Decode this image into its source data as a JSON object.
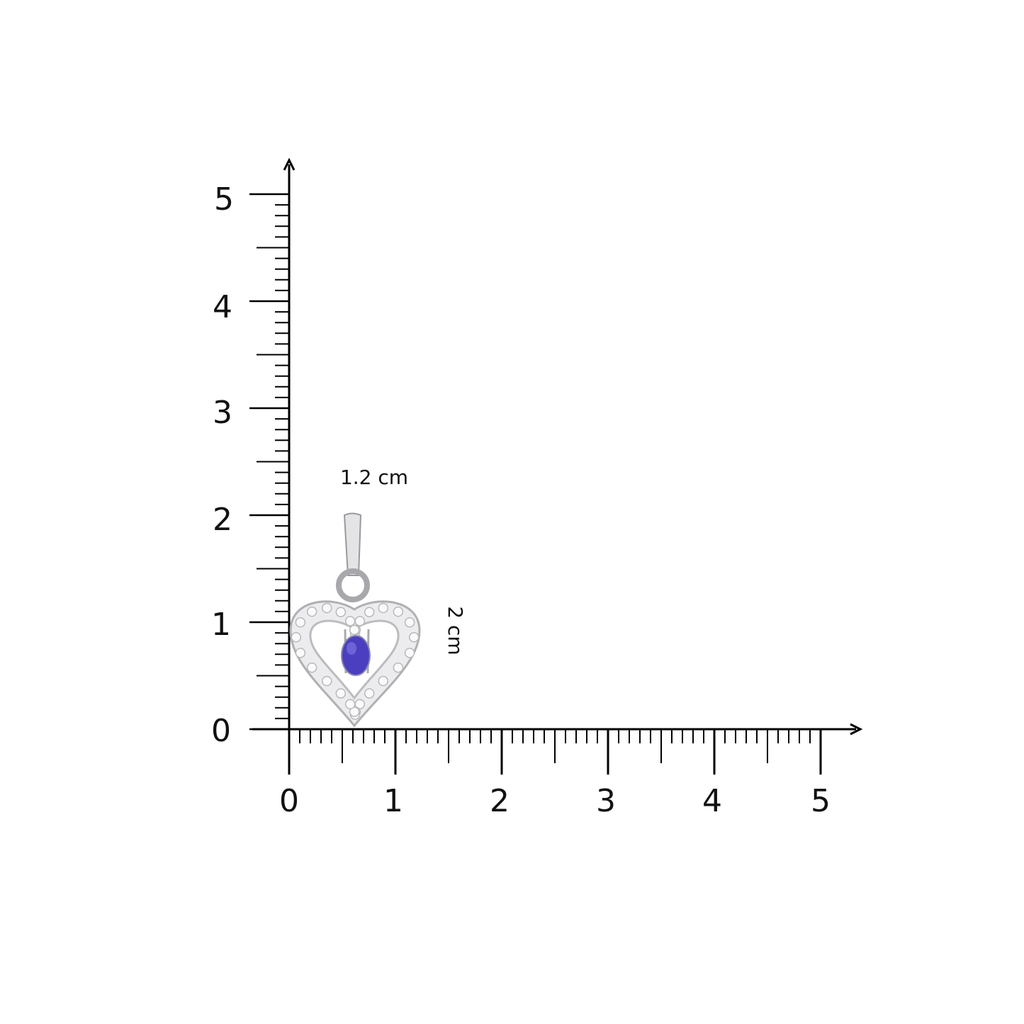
{
  "ruler": {
    "x_ticks": [
      "0",
      "1",
      "2",
      "3",
      "4",
      "5"
    ],
    "y_ticks": [
      "0",
      "1",
      "2",
      "3",
      "4",
      "5"
    ],
    "range": [
      0,
      5
    ],
    "minor_step": 0.1,
    "unit": "cm"
  },
  "product": {
    "width_label": "1.2 cm",
    "height_label": "2 cm",
    "width_cm": 1.2,
    "height_cm": 2,
    "metal_color": "#d9d9dc",
    "stone_color": "#4b3fc0"
  }
}
